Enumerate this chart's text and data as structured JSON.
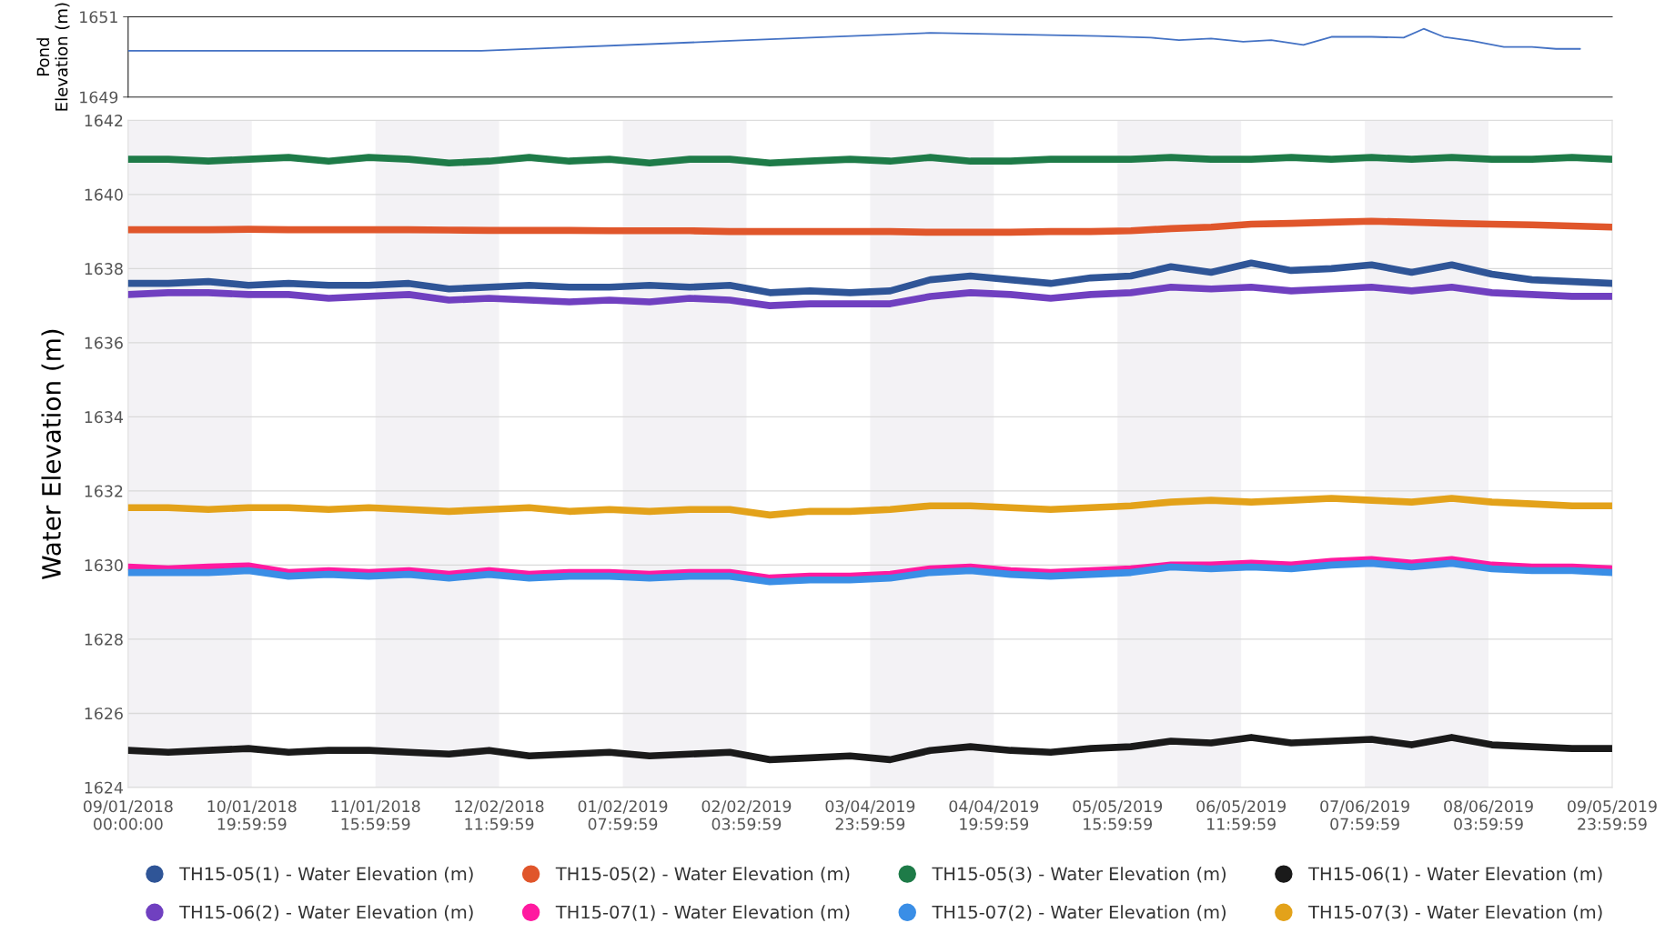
{
  "chart_data": [
    {
      "type": "line",
      "ylabel": "Pond\nElevation (m)",
      "xlim": [
        "2018-09-01T00:00",
        "2019-09-05T23:59"
      ],
      "ylim": [
        1649,
        1651
      ],
      "yticks": [
        1649,
        1651
      ],
      "tick_labels": "y",
      "grid": false,
      "legend": false,
      "series": [
        {
          "color": "#4472c4",
          "x": [
            "2018-09-01",
            "2018-11-28",
            "2019-01-29",
            "2019-03-20",
            "2019-05-01",
            "2019-05-14",
            "2019-05-21",
            "2019-05-29",
            "2019-06-06",
            "2019-06-13",
            "2019-06-21",
            "2019-06-28",
            "2019-07-08",
            "2019-07-16",
            "2019-07-21",
            "2019-07-26",
            "2019-08-02",
            "2019-08-10",
            "2019-08-17",
            "2019-08-23",
            "2019-08-29"
          ],
          "values": [
            1650.15,
            1650.15,
            1650.4,
            1650.6,
            1650.52,
            1650.48,
            1650.42,
            1650.46,
            1650.38,
            1650.42,
            1650.3,
            1650.5,
            1650.5,
            1650.48,
            1650.7,
            1650.5,
            1650.4,
            1650.25,
            1650.25,
            1650.2,
            1650.2
          ]
        }
      ]
    },
    {
      "type": "line",
      "ylabel": "Water Elevation (m)",
      "xlim": [
        "2018-09-01T00:00",
        "2019-09-05T23:59"
      ],
      "ylim": [
        1624,
        1642
      ],
      "yticks": [
        1624,
        1626,
        1628,
        1630,
        1632,
        1634,
        1636,
        1638,
        1640,
        1642
      ],
      "xticks": [
        {
          "value": "2018-09-01T00:00",
          "label": "09/01/2018\n00:00:00"
        },
        {
          "value": "2018-10-01T19:59",
          "label": "10/01/2018\n19:59:59"
        },
        {
          "value": "2018-11-01T15:59",
          "label": "11/01/2018\n15:59:59"
        },
        {
          "value": "2018-12-02T11:59",
          "label": "12/02/2018\n11:59:59"
        },
        {
          "value": "2019-01-02T07:59",
          "label": "01/02/2019\n07:59:59"
        },
        {
          "value": "2019-02-02T03:59",
          "label": "02/02/2019\n03:59:59"
        },
        {
          "value": "2019-03-04T23:59",
          "label": "03/04/2019\n23:59:59"
        },
        {
          "value": "2019-04-04T19:59",
          "label": "04/04/2019\n19:59:59"
        },
        {
          "value": "2019-05-05T15:59",
          "label": "05/05/2019\n15:59:59"
        },
        {
          "value": "2019-06-05T11:59",
          "label": "06/05/2019\n11:59:59"
        },
        {
          "value": "2019-07-06T07:59",
          "label": "07/06/2019\n07:59:59"
        },
        {
          "value": "2019-08-06T03:59",
          "label": "08/06/2019\n03:59:59"
        },
        {
          "value": "2019-09-05T23:59",
          "label": "09/05/2019\n23:59:59"
        }
      ],
      "grid": "y",
      "legend": "bottom",
      "line_style": "solid",
      "bands": [
        {
          "axis": "x",
          "from": "2018-09-01T00:00",
          "to": "2018-10-01T19:59",
          "color": "#f3f2f5"
        },
        {
          "axis": "x",
          "from": "2018-11-01T15:59",
          "to": "2018-12-02T11:59",
          "color": "#f3f2f5"
        },
        {
          "axis": "x",
          "from": "2019-01-02T07:59",
          "to": "2019-02-02T03:59",
          "color": "#f3f2f5"
        },
        {
          "axis": "x",
          "from": "2019-03-04T23:59",
          "to": "2019-04-04T19:59",
          "color": "#f3f2f5"
        },
        {
          "axis": "x",
          "from": "2019-05-05T15:59",
          "to": "2019-06-05T11:59",
          "color": "#f3f2f5"
        },
        {
          "axis": "x",
          "from": "2019-07-06T07:59",
          "to": "2019-08-06T03:59",
          "color": "#f3f2f5"
        }
      ],
      "x": [
        "2018-09-01",
        "2018-09-11",
        "2018-09-21",
        "2018-10-01",
        "2018-10-11",
        "2018-10-21",
        "2018-10-31",
        "2018-11-10",
        "2018-11-20",
        "2018-11-30",
        "2018-12-10",
        "2018-12-20",
        "2018-12-30",
        "2019-01-09",
        "2019-01-19",
        "2019-01-29",
        "2019-02-08",
        "2019-02-18",
        "2019-02-28",
        "2019-03-10",
        "2019-03-20",
        "2019-03-30",
        "2019-04-09",
        "2019-04-19",
        "2019-04-29",
        "2019-05-09",
        "2019-05-19",
        "2019-05-29",
        "2019-06-08",
        "2019-06-18",
        "2019-06-28",
        "2019-07-08",
        "2019-07-18",
        "2019-07-28",
        "2019-08-07",
        "2019-08-17",
        "2019-08-27",
        "2019-09-05T23:59"
      ],
      "series": [
        {
          "name": "TH15-05(1) - Water Elevation (m)",
          "color": "#2f5597",
          "values": [
            1637.6,
            1637.6,
            1637.65,
            1637.55,
            1637.6,
            1637.55,
            1637.55,
            1637.6,
            1637.45,
            1637.5,
            1637.55,
            1637.5,
            1637.5,
            1637.55,
            1637.5,
            1637.55,
            1637.35,
            1637.4,
            1637.35,
            1637.4,
            1637.7,
            1637.8,
            1637.7,
            1637.6,
            1637.75,
            1637.8,
            1638.05,
            1637.9,
            1638.15,
            1637.95,
            1638.0,
            1638.1,
            1637.9,
            1638.1,
            1637.85,
            1637.7,
            1637.65,
            1637.6
          ]
        },
        {
          "name": "TH15-05(2) - Water Elevation (m)",
          "color": "#e0562b",
          "values": [
            1639.05,
            1639.05,
            1639.05,
            1639.06,
            1639.05,
            1639.05,
            1639.05,
            1639.05,
            1639.04,
            1639.03,
            1639.03,
            1639.03,
            1639.02,
            1639.02,
            1639.02,
            1639.0,
            1639.0,
            1639.0,
            1639.0,
            1639.0,
            1638.98,
            1638.98,
            1638.98,
            1639.0,
            1639.0,
            1639.02,
            1639.08,
            1639.12,
            1639.2,
            1639.22,
            1639.25,
            1639.28,
            1639.25,
            1639.22,
            1639.2,
            1639.18,
            1639.15,
            1639.12
          ]
        },
        {
          "name": "TH15-05(3) - Water Elevation (m)",
          "color": "#1e7b48",
          "values": [
            1640.95,
            1640.95,
            1640.9,
            1640.95,
            1641.0,
            1640.9,
            1641.0,
            1640.95,
            1640.85,
            1640.9,
            1641.0,
            1640.9,
            1640.95,
            1640.85,
            1640.95,
            1640.95,
            1640.85,
            1640.9,
            1640.95,
            1640.9,
            1641.0,
            1640.9,
            1640.9,
            1640.95,
            1640.95,
            1640.95,
            1641.0,
            1640.95,
            1640.95,
            1641.0,
            1640.95,
            1641.0,
            1640.95,
            1641.0,
            1640.95,
            1640.95,
            1641.0,
            1640.95
          ]
        },
        {
          "name": "TH15-06(1) - Water Elevation (m)",
          "color": "#1a1a1a",
          "values": [
            1625.0,
            1624.95,
            1625.0,
            1625.05,
            1624.95,
            1625.0,
            1625.0,
            1624.95,
            1624.9,
            1625.0,
            1624.85,
            1624.9,
            1624.95,
            1624.85,
            1624.9,
            1624.95,
            1624.75,
            1624.8,
            1624.85,
            1624.75,
            1625.0,
            1625.1,
            1625.0,
            1624.95,
            1625.05,
            1625.1,
            1625.25,
            1625.2,
            1625.35,
            1625.2,
            1625.25,
            1625.3,
            1625.15,
            1625.35,
            1625.15,
            1625.1,
            1625.05,
            1625.05
          ]
        },
        {
          "name": "TH15-06(2) - Water Elevation (m)",
          "color": "#7040c0",
          "values": [
            1637.3,
            1637.35,
            1637.35,
            1637.3,
            1637.3,
            1637.2,
            1637.25,
            1637.3,
            1637.15,
            1637.2,
            1637.15,
            1637.1,
            1637.15,
            1637.1,
            1637.2,
            1637.15,
            1637.0,
            1637.05,
            1637.05,
            1637.05,
            1637.25,
            1637.35,
            1637.3,
            1637.2,
            1637.3,
            1637.35,
            1637.5,
            1637.45,
            1637.5,
            1637.4,
            1637.45,
            1637.5,
            1637.4,
            1637.5,
            1637.35,
            1637.3,
            1637.25,
            1637.25
          ]
        },
        {
          "name": "TH15-07(1) - Water Elevation (m)",
          "color": "#ff1aa0",
          "values": [
            1629.95,
            1629.9,
            1629.95,
            1629.98,
            1629.8,
            1629.85,
            1629.8,
            1629.85,
            1629.75,
            1629.85,
            1629.75,
            1629.8,
            1629.8,
            1629.75,
            1629.8,
            1629.8,
            1629.65,
            1629.7,
            1629.7,
            1629.75,
            1629.9,
            1629.95,
            1629.85,
            1629.8,
            1629.85,
            1629.9,
            1630.0,
            1630.0,
            1630.05,
            1630.0,
            1630.1,
            1630.15,
            1630.05,
            1630.15,
            1630.0,
            1629.95,
            1629.95,
            1629.9
          ]
        },
        {
          "name": "TH15-07(2) - Water Elevation (m)",
          "color": "#3a8ee6",
          "values": [
            1629.8,
            1629.8,
            1629.8,
            1629.85,
            1629.7,
            1629.75,
            1629.7,
            1629.75,
            1629.65,
            1629.75,
            1629.65,
            1629.7,
            1629.7,
            1629.65,
            1629.7,
            1629.7,
            1629.55,
            1629.6,
            1629.6,
            1629.65,
            1629.8,
            1629.85,
            1629.75,
            1629.7,
            1629.75,
            1629.8,
            1629.95,
            1629.9,
            1629.95,
            1629.9,
            1630.0,
            1630.05,
            1629.95,
            1630.05,
            1629.9,
            1629.85,
            1629.85,
            1629.8
          ]
        },
        {
          "name": "TH15-07(3) - Water Elevation (m)",
          "color": "#e3a21a",
          "values": [
            1631.55,
            1631.55,
            1631.5,
            1631.55,
            1631.55,
            1631.5,
            1631.55,
            1631.5,
            1631.45,
            1631.5,
            1631.55,
            1631.45,
            1631.5,
            1631.45,
            1631.5,
            1631.5,
            1631.35,
            1631.45,
            1631.45,
            1631.5,
            1631.6,
            1631.6,
            1631.55,
            1631.5,
            1631.55,
            1631.6,
            1631.7,
            1631.75,
            1631.7,
            1631.75,
            1631.8,
            1631.75,
            1631.7,
            1631.8,
            1631.7,
            1631.65,
            1631.6,
            1631.6
          ]
        }
      ]
    }
  ]
}
